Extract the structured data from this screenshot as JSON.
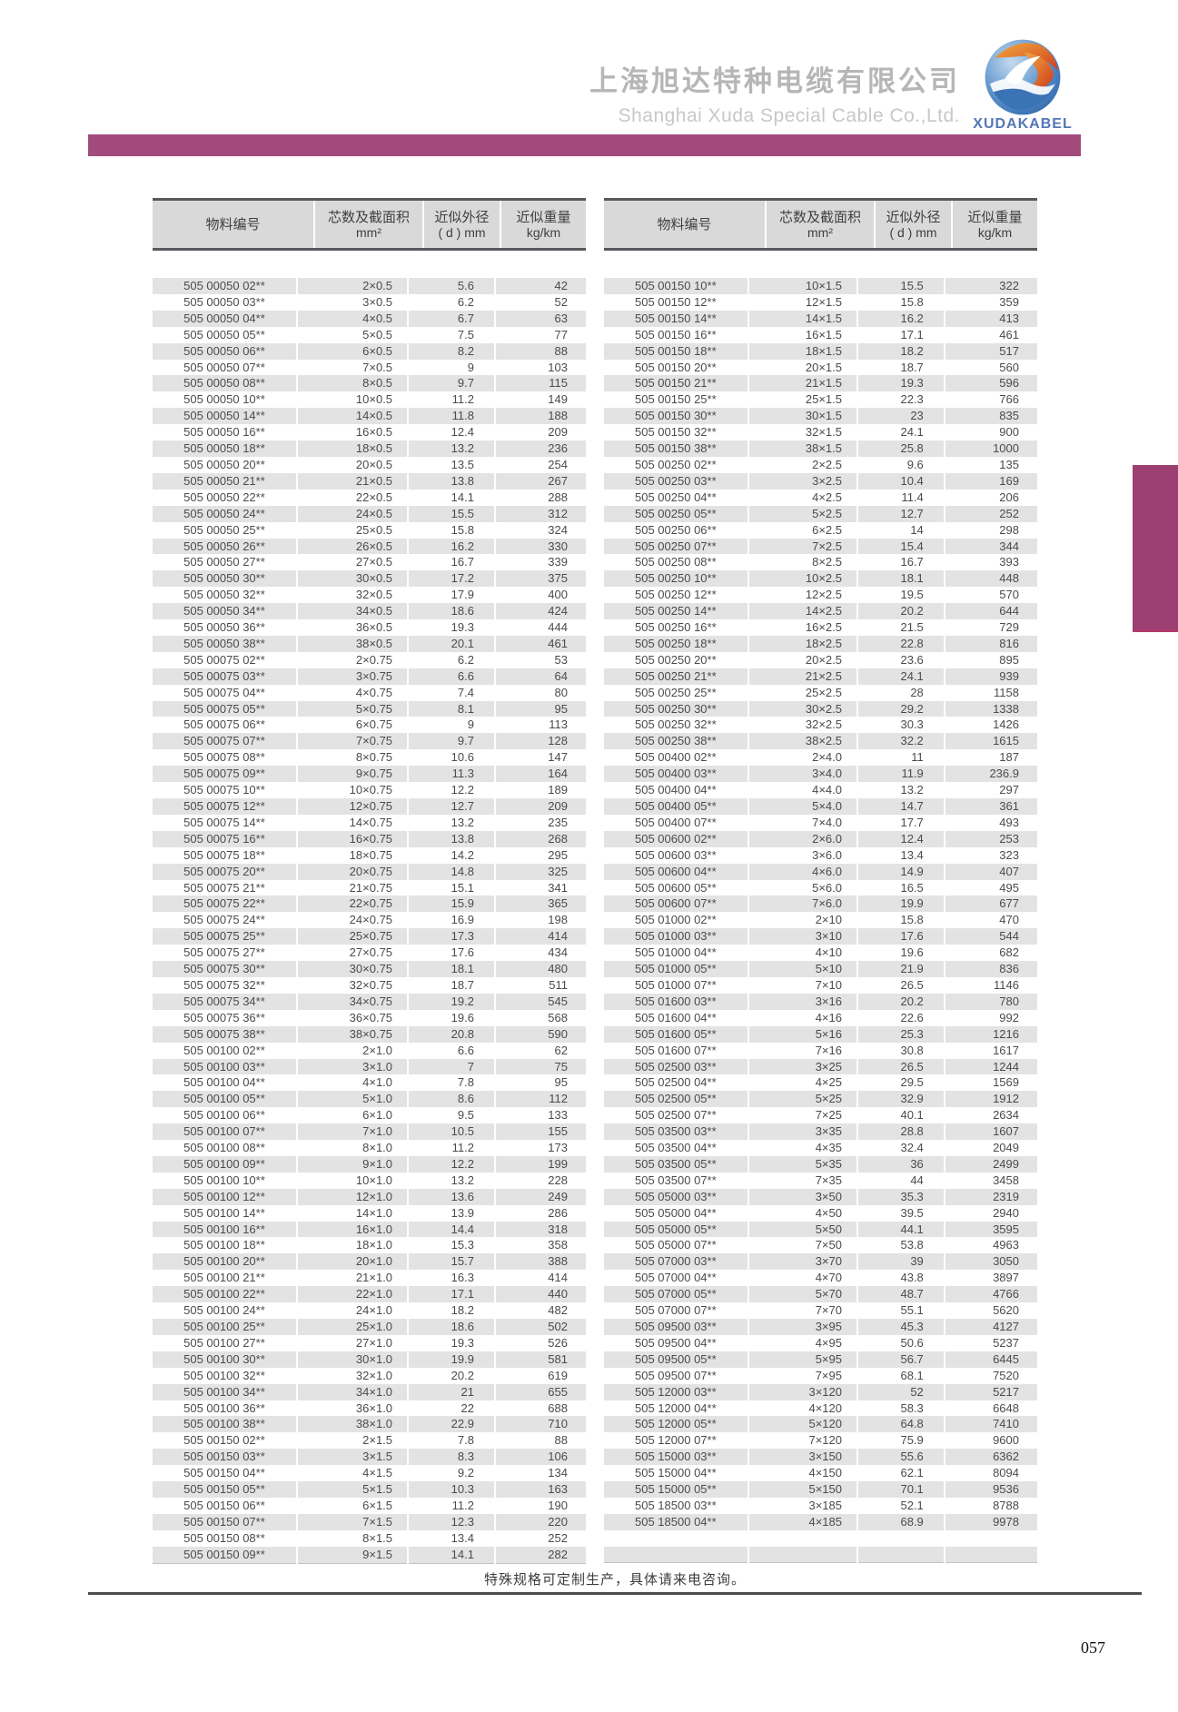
{
  "header": {
    "company_cn": "上海旭达特种电缆有限公司",
    "company_en": "Shanghai Xuda Special Cable Co.,Ltd.",
    "logo_text": "XUDAKABEL"
  },
  "colors": {
    "accent_bar": "#a34a7d",
    "side_tab": "#9c4074",
    "header_band": "#d9d9d9",
    "row_stripe": "#e3e3e4",
    "logo_blue": "#5577b5"
  },
  "columns": [
    {
      "l1": "物料编号",
      "l2": ""
    },
    {
      "l1": "芯数及截面积",
      "l2": "mm²"
    },
    {
      "l1": "近似外径",
      "l2": "( d ) mm"
    },
    {
      "l1": "近似重量",
      "l2": "kg/km"
    }
  ],
  "tables": {
    "left": {
      "rows": [
        [
          "505 00050 02**",
          "2×0.5",
          "5.6",
          "42"
        ],
        [
          "505 00050 03**",
          "3×0.5",
          "6.2",
          "52"
        ],
        [
          "505 00050 04**",
          "4×0.5",
          "6.7",
          "63"
        ],
        [
          "505 00050 05**",
          "5×0.5",
          "7.5",
          "77"
        ],
        [
          "505 00050 06**",
          "6×0.5",
          "8.2",
          "88"
        ],
        [
          "505 00050 07**",
          "7×0.5",
          "9",
          "103"
        ],
        [
          "505 00050 08**",
          "8×0.5",
          "9.7",
          "115"
        ],
        [
          "505 00050 10**",
          "10×0.5",
          "11.2",
          "149"
        ],
        [
          "505 00050 14**",
          "14×0.5",
          "11.8",
          "188"
        ],
        [
          "505 00050 16**",
          "16×0.5",
          "12.4",
          "209"
        ],
        [
          "505 00050 18**",
          "18×0.5",
          "13.2",
          "236"
        ],
        [
          "505 00050 20**",
          "20×0.5",
          "13.5",
          "254"
        ],
        [
          "505 00050 21**",
          "21×0.5",
          "13.8",
          "267"
        ],
        [
          "505 00050 22**",
          "22×0.5",
          "14.1",
          "288"
        ],
        [
          "505 00050 24**",
          "24×0.5",
          "15.5",
          "312"
        ],
        [
          "505 00050 25**",
          "25×0.5",
          "15.8",
          "324"
        ],
        [
          "505 00050 26**",
          "26×0.5",
          "16.2",
          "330"
        ],
        [
          "505 00050 27**",
          "27×0.5",
          "16.7",
          "339"
        ],
        [
          "505 00050 30**",
          "30×0.5",
          "17.2",
          "375"
        ],
        [
          "505 00050 32**",
          "32×0.5",
          "17.9",
          "400"
        ],
        [
          "505 00050 34**",
          "34×0.5",
          "18.6",
          "424"
        ],
        [
          "505 00050 36**",
          "36×0.5",
          "19.3",
          "444"
        ],
        [
          "505 00050 38**",
          "38×0.5",
          "20.1",
          "461"
        ],
        [
          "505 00075 02**",
          "2×0.75",
          "6.2",
          "53"
        ],
        [
          "505 00075 03**",
          "3×0.75",
          "6.6",
          "64"
        ],
        [
          "505 00075 04**",
          "4×0.75",
          "7.4",
          "80"
        ],
        [
          "505 00075 05**",
          "5×0.75",
          "8.1",
          "95"
        ],
        [
          "505 00075 06**",
          "6×0.75",
          "9",
          "113"
        ],
        [
          "505 00075 07**",
          "7×0.75",
          "9.7",
          "128"
        ],
        [
          "505 00075 08**",
          "8×0.75",
          "10.6",
          "147"
        ],
        [
          "505 00075 09**",
          "9×0.75",
          "11.3",
          "164"
        ],
        [
          "505 00075 10**",
          "10×0.75",
          "12.2",
          "189"
        ],
        [
          "505 00075 12**",
          "12×0.75",
          "12.7",
          "209"
        ],
        [
          "505 00075 14**",
          "14×0.75",
          "13.2",
          "235"
        ],
        [
          "505 00075 16**",
          "16×0.75",
          "13.8",
          "268"
        ],
        [
          "505 00075 18**",
          "18×0.75",
          "14.2",
          "295"
        ],
        [
          "505 00075 20**",
          "20×0.75",
          "14.8",
          "325"
        ],
        [
          "505 00075 21**",
          "21×0.75",
          "15.1",
          "341"
        ],
        [
          "505 00075 22**",
          "22×0.75",
          "15.9",
          "365"
        ],
        [
          "505 00075 24**",
          "24×0.75",
          "16.9",
          "198"
        ],
        [
          "505 00075 25**",
          "25×0.75",
          "17.3",
          "414"
        ],
        [
          "505 00075 27**",
          "27×0.75",
          "17.6",
          "434"
        ],
        [
          "505 00075 30**",
          "30×0.75",
          "18.1",
          "480"
        ],
        [
          "505 00075 32**",
          "32×0.75",
          "18.7",
          "511"
        ],
        [
          "505 00075 34**",
          "34×0.75",
          "19.2",
          "545"
        ],
        [
          "505 00075 36**",
          "36×0.75",
          "19.6",
          "568"
        ],
        [
          "505 00075 38**",
          "38×0.75",
          "20.8",
          "590"
        ],
        [
          "505 00100 02**",
          "2×1.0",
          "6.6",
          "62"
        ],
        [
          "505 00100 03**",
          "3×1.0",
          "7",
          "75"
        ],
        [
          "505 00100 04**",
          "4×1.0",
          "7.8",
          "95"
        ],
        [
          "505 00100 05**",
          "5×1.0",
          "8.6",
          "112"
        ],
        [
          "505 00100 06**",
          "6×1.0",
          "9.5",
          "133"
        ],
        [
          "505 00100 07**",
          "7×1.0",
          "10.5",
          "155"
        ],
        [
          "505 00100 08**",
          "8×1.0",
          "11.2",
          "173"
        ],
        [
          "505 00100 09**",
          "9×1.0",
          "12.2",
          "199"
        ],
        [
          "505 00100 10**",
          "10×1.0",
          "13.2",
          "228"
        ],
        [
          "505 00100 12**",
          "12×1.0",
          "13.6",
          "249"
        ],
        [
          "505 00100 14**",
          "14×1.0",
          "13.9",
          "286"
        ],
        [
          "505 00100 16**",
          "16×1.0",
          "14.4",
          "318"
        ],
        [
          "505 00100 18**",
          "18×1.0",
          "15.3",
          "358"
        ],
        [
          "505 00100 20**",
          "20×1.0",
          "15.7",
          "388"
        ],
        [
          "505 00100 21**",
          "21×1.0",
          "16.3",
          "414"
        ],
        [
          "505 00100 22**",
          "22×1.0",
          "17.1",
          "440"
        ],
        [
          "505 00100 24**",
          "24×1.0",
          "18.2",
          "482"
        ],
        [
          "505 00100 25**",
          "25×1.0",
          "18.6",
          "502"
        ],
        [
          "505 00100 27**",
          "27×1.0",
          "19.3",
          "526"
        ],
        [
          "505 00100 30**",
          "30×1.0",
          "19.9",
          "581"
        ],
        [
          "505 00100 32**",
          "32×1.0",
          "20.2",
          "619"
        ],
        [
          "505 00100 34**",
          "34×1.0",
          "21",
          "655"
        ],
        [
          "505 00100 36**",
          "36×1.0",
          "22",
          "688"
        ],
        [
          "505 00100 38**",
          "38×1.0",
          "22.9",
          "710"
        ],
        [
          "505 00150 02**",
          "2×1.5",
          "7.8",
          "88"
        ],
        [
          "505 00150 03**",
          "3×1.5",
          "8.3",
          "106"
        ],
        [
          "505 00150 04**",
          "4×1.5",
          "9.2",
          "134"
        ],
        [
          "505 00150 05**",
          "5×1.5",
          "10.3",
          "163"
        ],
        [
          "505 00150 06**",
          "6×1.5",
          "11.2",
          "190"
        ],
        [
          "505 00150 07**",
          "7×1.5",
          "12.3",
          "220"
        ],
        [
          "505 00150 08**",
          "8×1.5",
          "13.4",
          "252"
        ],
        [
          "505 00150 09**",
          "9×1.5",
          "14.1",
          "282"
        ]
      ]
    },
    "right": {
      "rows": [
        [
          "505 00150 10**",
          "10×1.5",
          "15.5",
          "322"
        ],
        [
          "505 00150 12**",
          "12×1.5",
          "15.8",
          "359"
        ],
        [
          "505 00150 14**",
          "14×1.5",
          "16.2",
          "413"
        ],
        [
          "505 00150 16**",
          "16×1.5",
          "17.1",
          "461"
        ],
        [
          "505 00150 18**",
          "18×1.5",
          "18.2",
          "517"
        ],
        [
          "505 00150 20**",
          "20×1.5",
          "18.7",
          "560"
        ],
        [
          "505 00150 21**",
          "21×1.5",
          "19.3",
          "596"
        ],
        [
          "505 00150 25**",
          "25×1.5",
          "22.3",
          "766"
        ],
        [
          "505 00150 30**",
          "30×1.5",
          "23",
          "835"
        ],
        [
          "505 00150 32**",
          "32×1.5",
          "24.1",
          "900"
        ],
        [
          "505 00150 38**",
          "38×1.5",
          "25.8",
          "1000"
        ],
        [
          "505 00250 02**",
          "2×2.5",
          "9.6",
          "135"
        ],
        [
          "505 00250 03**",
          "3×2.5",
          "10.4",
          "169"
        ],
        [
          "505 00250 04**",
          "4×2.5",
          "11.4",
          "206"
        ],
        [
          "505 00250 05**",
          "5×2.5",
          "12.7",
          "252"
        ],
        [
          "505 00250 06**",
          "6×2.5",
          "14",
          "298"
        ],
        [
          "505 00250 07**",
          "7×2.5",
          "15.4",
          "344"
        ],
        [
          "505 00250 08**",
          "8×2.5",
          "16.7",
          "393"
        ],
        [
          "505 00250 10**",
          "10×2.5",
          "18.1",
          "448"
        ],
        [
          "505 00250 12**",
          "12×2.5",
          "19.5",
          "570"
        ],
        [
          "505 00250 14**",
          "14×2.5",
          "20.2",
          "644"
        ],
        [
          "505 00250 16**",
          "16×2.5",
          "21.5",
          "729"
        ],
        [
          "505 00250 18**",
          "18×2.5",
          "22.8",
          "816"
        ],
        [
          "505 00250 20**",
          "20×2.5",
          "23.6",
          "895"
        ],
        [
          "505 00250 21**",
          "21×2.5",
          "24.1",
          "939"
        ],
        [
          "505 00250 25**",
          "25×2.5",
          "28",
          "1158"
        ],
        [
          "505 00250 30**",
          "30×2.5",
          "29.2",
          "1338"
        ],
        [
          "505 00250 32**",
          "32×2.5",
          "30.3",
          "1426"
        ],
        [
          "505 00250 38**",
          "38×2.5",
          "32.2",
          "1615"
        ],
        [
          "505 00400 02**",
          "2×4.0",
          "11",
          "187"
        ],
        [
          "505 00400 03**",
          "3×4.0",
          "11.9",
          "236.9"
        ],
        [
          "505 00400 04**",
          "4×4.0",
          "13.2",
          "297"
        ],
        [
          "505 00400 05**",
          "5×4.0",
          "14.7",
          "361"
        ],
        [
          "505 00400 07**",
          "7×4.0",
          "17.7",
          "493"
        ],
        [
          "505 00600 02**",
          "2×6.0",
          "12.4",
          "253"
        ],
        [
          "505 00600 03**",
          "3×6.0",
          "13.4",
          "323"
        ],
        [
          "505 00600 04**",
          "4×6.0",
          "14.9",
          "407"
        ],
        [
          "505 00600 05**",
          "5×6.0",
          "16.5",
          "495"
        ],
        [
          "505 00600 07**",
          "7×6.0",
          "19.9",
          "677"
        ],
        [
          "505 01000 02**",
          "2×10",
          "15.8",
          "470"
        ],
        [
          "505 01000 03**",
          "3×10",
          "17.6",
          "544"
        ],
        [
          "505 01000 04**",
          "4×10",
          "19.6",
          "682"
        ],
        [
          "505 01000 05**",
          "5×10",
          "21.9",
          "836"
        ],
        [
          "505 01000 07**",
          "7×10",
          "26.5",
          "1146"
        ],
        [
          "505 01600 03**",
          "3×16",
          "20.2",
          "780"
        ],
        [
          "505 01600 04**",
          "4×16",
          "22.6",
          "992"
        ],
        [
          "505 01600 05**",
          "5×16",
          "25.3",
          "1216"
        ],
        [
          "505 01600 07**",
          "7×16",
          "30.8",
          "1617"
        ],
        [
          "505 02500 03**",
          "3×25",
          "26.5",
          "1244"
        ],
        [
          "505 02500 04**",
          "4×25",
          "29.5",
          "1569"
        ],
        [
          "505 02500 05**",
          "5×25",
          "32.9",
          "1912"
        ],
        [
          "505 02500 07**",
          "7×25",
          "40.1",
          "2634"
        ],
        [
          "505 03500 03**",
          "3×35",
          "28.8",
          "1607"
        ],
        [
          "505 03500 04**",
          "4×35",
          "32.4",
          "2049"
        ],
        [
          "505 03500 05**",
          "5×35",
          "36",
          "2499"
        ],
        [
          "505 03500 07**",
          "7×35",
          "44",
          "3458"
        ],
        [
          "505 05000 03**",
          "3×50",
          "35.3",
          "2319"
        ],
        [
          "505 05000 04**",
          "4×50",
          "39.5",
          "2940"
        ],
        [
          "505 05000 05**",
          "5×50",
          "44.1",
          "3595"
        ],
        [
          "505 05000 07**",
          "7×50",
          "53.8",
          "4963"
        ],
        [
          "505 07000 03**",
          "3×70",
          "39",
          "3050"
        ],
        [
          "505 07000 04**",
          "4×70",
          "43.8",
          "3897"
        ],
        [
          "505 07000 05**",
          "5×70",
          "48.7",
          "4766"
        ],
        [
          "505 07000 07**",
          "7×70",
          "55.1",
          "5620"
        ],
        [
          "505 09500 03**",
          "3×95",
          "45.3",
          "4127"
        ],
        [
          "505 09500 04**",
          "4×95",
          "50.6",
          "5237"
        ],
        [
          "505 09500 05**",
          "5×95",
          "56.7",
          "6445"
        ],
        [
          "505 09500 07**",
          "7×95",
          "68.1",
          "7520"
        ],
        [
          "505 12000 03**",
          "3×120",
          "52",
          "5217"
        ],
        [
          "505 12000 04**",
          "4×120",
          "58.3",
          "6648"
        ],
        [
          "505 12000 05**",
          "5×120",
          "64.8",
          "7410"
        ],
        [
          "505 12000 07**",
          "7×120",
          "75.9",
          "9600"
        ],
        [
          "505 15000 03**",
          "3×150",
          "55.6",
          "6362"
        ],
        [
          "505 15000 04**",
          "4×150",
          "62.1",
          "8094"
        ],
        [
          "505 15000 05**",
          "5×150",
          "70.1",
          "9536"
        ],
        [
          "505 18500 03**",
          "3×185",
          "52.1",
          "8788"
        ],
        [
          "505 18500 04**",
          "4×185",
          "68.9",
          "9978"
        ],
        [
          "",
          "",
          "",
          ""
        ],
        [
          "",
          "",
          "",
          ""
        ]
      ]
    }
  },
  "footer": {
    "note": "特殊规格可定制生产，具体请来电咨询。",
    "page_number": "057"
  }
}
